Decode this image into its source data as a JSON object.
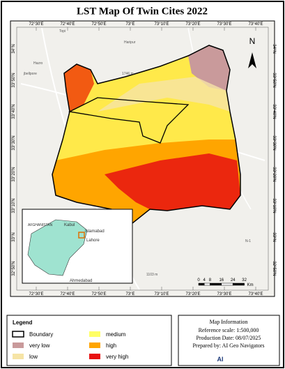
{
  "header": {
    "title": "LST  Map Of Twin Cites 2022"
  },
  "grid": {
    "longitudes": [
      "72°30'E",
      "72°40'E",
      "72°50'E",
      "73°E",
      "73°10'E",
      "73°20'E",
      "73°30'E",
      "73°40'E"
    ],
    "latitudes": [
      "34°N",
      "33°50'N",
      "33°40'N",
      "33°30'N",
      "33°20'N",
      "33°10'N",
      "33°N",
      "32°50'N"
    ]
  },
  "places": [
    "Topi",
    "Haripur",
    "Hazro",
    "jbellpore",
    "1746 m",
    "1103 m",
    "N-1"
  ],
  "inset": {
    "labels": [
      "AFGHANISTAN",
      "Kabul",
      "Islamabad",
      "Lahore",
      "Ahmedabad"
    ]
  },
  "north_arrow": "N",
  "scale_bar": {
    "labels": [
      "0",
      "4",
      "8",
      "16",
      "24",
      "32"
    ],
    "unit": "Km"
  },
  "legend": {
    "title": "Legend",
    "items": [
      {
        "label": "Boundary",
        "color": "#ffffff"
      },
      {
        "label": "very low",
        "color": "#c99a9b"
      },
      {
        "label": "low",
        "color": "#f6e4a6"
      },
      {
        "label": "medium",
        "color": "#ffff66"
      },
      {
        "label": "high",
        "color": "#ffa500"
      },
      {
        "label": "very high",
        "color": "#e81010"
      }
    ]
  },
  "map_info": {
    "title": "Map Information",
    "lines": [
      "Reference scale: 1:500,000",
      "Production Date: 08/07/2025",
      "Prepared by: AI Geo Navigators"
    ],
    "logo": "AI"
  }
}
